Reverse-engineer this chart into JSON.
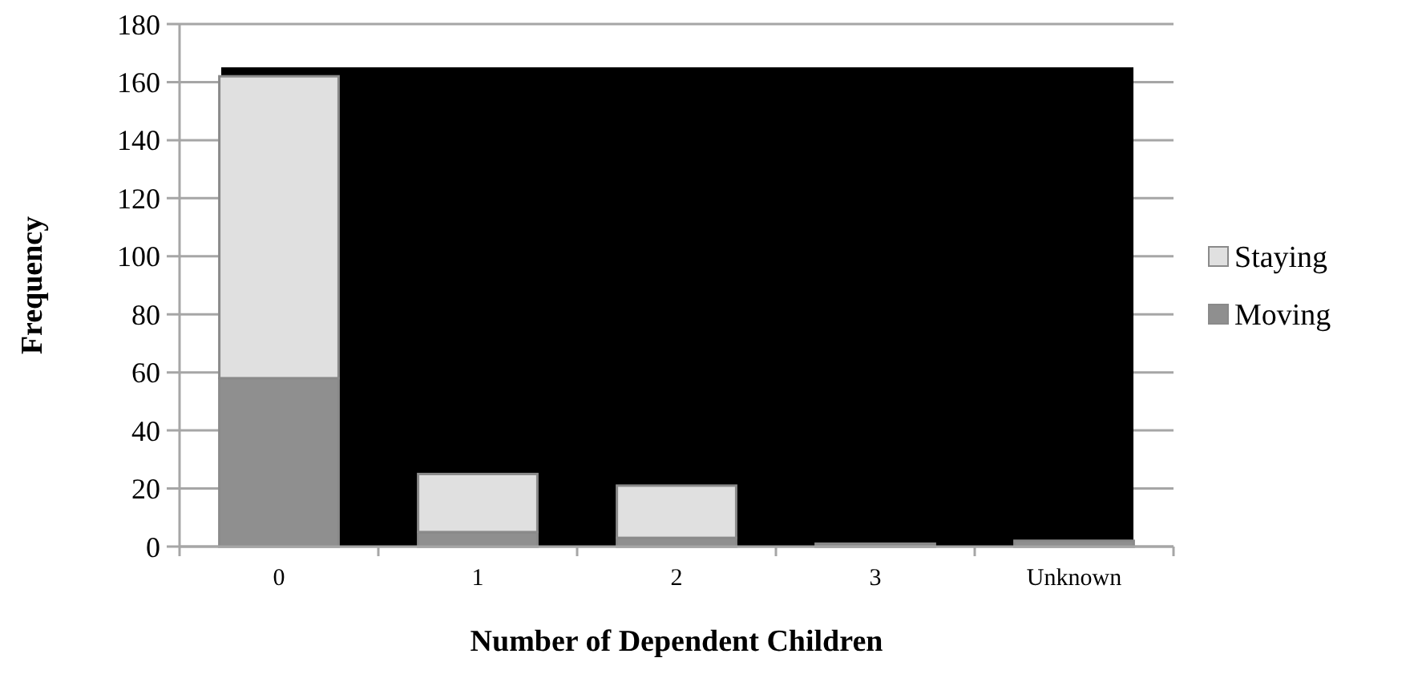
{
  "chart_data": {
    "type": "bar",
    "xlabel": "Number of Dependent Children",
    "ylabel": "Frequency",
    "categories": [
      "0",
      "1",
      "2",
      "3",
      "Unknown"
    ],
    "stacked": true,
    "series": [
      {
        "name": "Moving",
        "color": "#8f8f8f",
        "values": [
          58,
          5,
          3,
          1,
          2
        ]
      },
      {
        "name": "Staying",
        "color": "#e0e0e0",
        "values": [
          104,
          20,
          18,
          0,
          0
        ]
      }
    ],
    "ylim": [
      0,
      180
    ],
    "yticks": [
      0,
      20,
      40,
      60,
      80,
      100,
      120,
      140,
      160,
      180
    ],
    "grid": "y",
    "legend": "right"
  }
}
